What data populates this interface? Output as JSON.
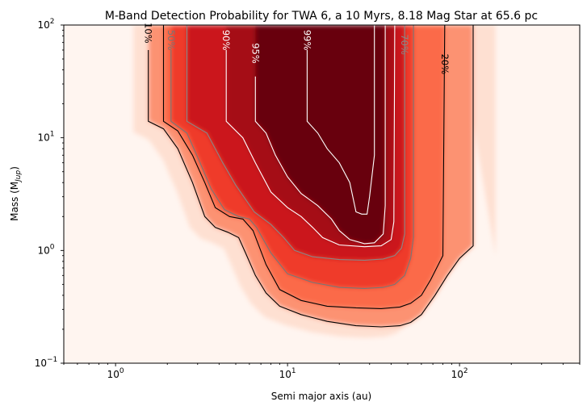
{
  "chart_data": {
    "type": "heatmap",
    "title": "M-Band Detection Probability for TWA 6, a 10 Myrs, 8.18 Mag Star at 65.6 pc",
    "xlabel": "Semi major axis (au)",
    "ylabel_main": "Mass (M",
    "ylabel_sub": "Jup",
    "ylabel_close": ")",
    "xscale": "log",
    "yscale": "log",
    "xlim": [
      0.5,
      500
    ],
    "ylim": [
      0.1,
      100
    ],
    "x_ticks": [
      {
        "value": 1,
        "base": "10",
        "exp": "0"
      },
      {
        "value": 10,
        "base": "10",
        "exp": "1"
      },
      {
        "value": 100,
        "base": "10",
        "exp": "2"
      }
    ],
    "y_ticks": [
      {
        "value": 0.1,
        "base": "10",
        "exp": "−1"
      },
      {
        "value": 1,
        "base": "10",
        "exp": "0"
      },
      {
        "value": 10,
        "base": "10",
        "exp": "1"
      },
      {
        "value": 100,
        "base": "10",
        "exp": "2"
      }
    ],
    "colormap": "Reds",
    "colormap_stops": [
      "#fff5f0",
      "#fee0d2",
      "#fcbba1",
      "#fc9272",
      "#fb6a4a",
      "#ef3b2c",
      "#cb181d",
      "#a50f15",
      "#67000d"
    ],
    "contours": [
      {
        "level": 10,
        "label": "10%",
        "color": "#000000",
        "path": [
          [
            1.55,
            60
          ],
          [
            1.55,
            14
          ],
          [
            1.9,
            12
          ],
          [
            2.3,
            8
          ],
          [
            2.8,
            4
          ],
          [
            3.3,
            2
          ],
          [
            3.8,
            1.6
          ],
          [
            4.5,
            1.45
          ],
          [
            5.2,
            1.3
          ],
          [
            5.7,
            0.95
          ],
          [
            6.5,
            0.6
          ],
          [
            7.5,
            0.42
          ],
          [
            9,
            0.32
          ],
          [
            12,
            0.27
          ],
          [
            17,
            0.235
          ],
          [
            25,
            0.215
          ],
          [
            35,
            0.21
          ],
          [
            45,
            0.215
          ],
          [
            52,
            0.23
          ],
          [
            60,
            0.27
          ],
          [
            72,
            0.4
          ],
          [
            85,
            0.6
          ],
          [
            100,
            0.85
          ],
          [
            120,
            1.1
          ],
          [
            120,
            100
          ]
        ]
      },
      {
        "level": 20,
        "label": "20%",
        "color": "#000000",
        "path": [
          [
            1.9,
            100
          ],
          [
            1.9,
            14
          ],
          [
            2.3,
            11.5
          ],
          [
            2.8,
            7
          ],
          [
            3.3,
            4
          ],
          [
            3.8,
            2.4
          ],
          [
            4.6,
            2.0
          ],
          [
            5.5,
            1.9
          ],
          [
            6.3,
            1.5
          ],
          [
            7.5,
            0.75
          ],
          [
            9,
            0.45
          ],
          [
            12,
            0.36
          ],
          [
            17,
            0.32
          ],
          [
            25,
            0.31
          ],
          [
            35,
            0.305
          ],
          [
            45,
            0.315
          ],
          [
            52,
            0.34
          ],
          [
            60,
            0.4
          ],
          [
            68,
            0.55
          ],
          [
            80,
            0.9
          ],
          [
            82,
            100
          ]
        ]
      },
      {
        "level": 50,
        "label": "50%",
        "color": "#777777",
        "path": [
          [
            2.1,
            60
          ],
          [
            2.1,
            14
          ],
          [
            2.6,
            11
          ],
          [
            3.1,
            6
          ],
          [
            3.6,
            3.5
          ],
          [
            4.3,
            2.3
          ],
          [
            5.2,
            2.0
          ],
          [
            6.0,
            1.9
          ],
          [
            6.6,
            1.6
          ],
          [
            8,
            0.95
          ],
          [
            10,
            0.62
          ],
          [
            14,
            0.52
          ],
          [
            20,
            0.47
          ],
          [
            28,
            0.46
          ],
          [
            36,
            0.47
          ],
          [
            42,
            0.5
          ],
          [
            48,
            0.6
          ],
          [
            52,
            0.85
          ],
          [
            54,
            1.3
          ],
          [
            54,
            100
          ]
        ]
      },
      {
        "level": 70,
        "label": "70%",
        "color": "#888888",
        "path": [
          [
            2.6,
            100
          ],
          [
            2.6,
            14
          ],
          [
            3.4,
            11
          ],
          [
            4.2,
            6
          ],
          [
            5,
            3.8
          ],
          [
            6.4,
            2.2
          ],
          [
            8,
            1.7
          ],
          [
            9.5,
            1.3
          ],
          [
            11,
            1.0
          ],
          [
            14,
            0.88
          ],
          [
            20,
            0.83
          ],
          [
            28,
            0.82
          ],
          [
            36,
            0.84
          ],
          [
            42,
            0.9
          ],
          [
            46,
            1.05
          ],
          [
            48,
            1.4
          ],
          [
            48,
            50
          ]
        ]
      },
      {
        "level": 90,
        "label": "90%",
        "color": "#ffffff",
        "path": [
          [
            4.4,
            60
          ],
          [
            4.4,
            14
          ],
          [
            5.5,
            10
          ],
          [
            6.5,
            6
          ],
          [
            8,
            3.3
          ],
          [
            10,
            2.4
          ],
          [
            12,
            2.0
          ],
          [
            14,
            1.6
          ],
          [
            16,
            1.3
          ],
          [
            20,
            1.12
          ],
          [
            28,
            1.08
          ],
          [
            35,
            1.1
          ],
          [
            40,
            1.25
          ],
          [
            41.5,
            1.8
          ],
          [
            42,
            100
          ]
        ]
      },
      {
        "level": 95,
        "label": "95%",
        "color": "#ffffff",
        "path": [
          [
            6.5,
            35
          ],
          [
            6.5,
            14
          ],
          [
            7.5,
            11
          ],
          [
            8.5,
            7
          ],
          [
            10,
            4.5
          ],
          [
            12,
            3.2
          ],
          [
            15,
            2.5
          ],
          [
            18,
            1.9
          ],
          [
            20,
            1.5
          ],
          [
            23,
            1.25
          ],
          [
            28,
            1.15
          ],
          [
            32,
            1.17
          ],
          [
            36,
            1.4
          ],
          [
            37,
            2.5
          ],
          [
            37,
            100
          ]
        ]
      },
      {
        "level": 99,
        "label": "99%",
        "color": "#ffffff",
        "path": [
          [
            13,
            60
          ],
          [
            13,
            14
          ],
          [
            15,
            11
          ],
          [
            17,
            8
          ],
          [
            20,
            6
          ],
          [
            23,
            4
          ],
          [
            25,
            2.2
          ],
          [
            27,
            2.1
          ],
          [
            29,
            2.1
          ],
          [
            30,
            3
          ],
          [
            32,
            7
          ],
          [
            32,
            100
          ]
        ]
      }
    ]
  }
}
